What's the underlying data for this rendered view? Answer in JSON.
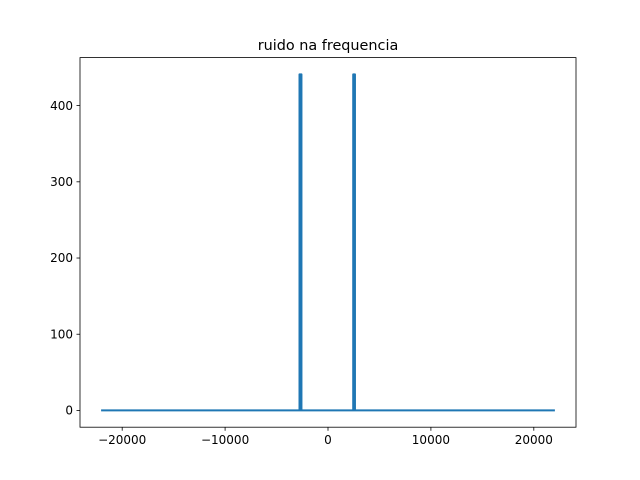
{
  "chart_data": {
    "type": "line",
    "title": "ruido na frequencia",
    "xlabel": "",
    "ylabel": "",
    "xlim": [
      -24100,
      24100
    ],
    "ylim": [
      -22,
      463
    ],
    "xticks": [
      -20000,
      -10000,
      0,
      10000,
      20000
    ],
    "xtick_labels": [
      "−20000",
      "−10000",
      "0",
      "10000",
      "20000"
    ],
    "yticks": [
      0,
      100,
      200,
      300,
      400
    ],
    "ytick_labels": [
      "0",
      "100",
      "200",
      "300",
      "400"
    ],
    "grid": false,
    "legend": "none",
    "series": [
      {
        "color": "#1f77b4",
        "x": [
          -22050,
          -2770,
          -2770,
          -2700,
          -2700,
          -2650,
          -2650,
          -2580,
          -2580,
          -2550,
          -2550,
          2450,
          2450,
          2500,
          2500,
          2560,
          2560,
          2620,
          2620,
          2670,
          2670,
          22050
        ],
        "y": [
          0,
          0,
          441,
          441,
          0,
          0,
          441,
          441,
          0,
          0,
          0,
          0,
          441,
          441,
          0,
          0,
          441,
          441,
          0,
          0,
          0,
          0
        ]
      }
    ]
  }
}
